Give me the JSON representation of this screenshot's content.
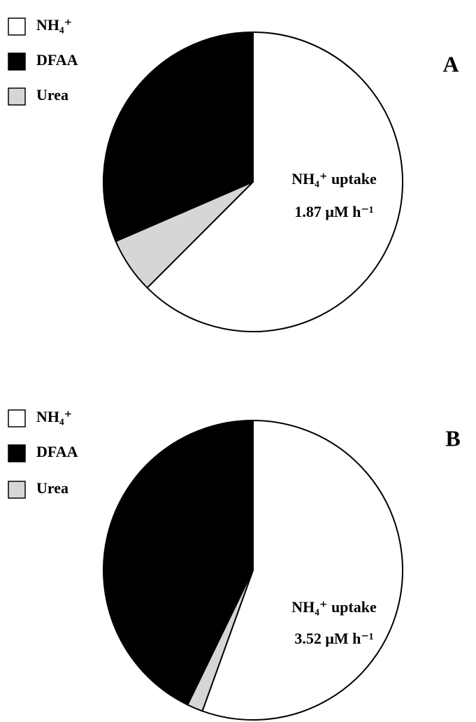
{
  "chart_data": [
    {
      "type": "pie",
      "panel": "A",
      "categories": [
        "NH₄⁺",
        "DFAA",
        "Urea"
      ],
      "values": [
        62.5,
        31.5,
        6
      ],
      "colors": [
        "#ffffff",
        "#000000",
        "#d6d6d6"
      ],
      "startangle": -135,
      "counterclock": true,
      "annotation": [
        "NH₄⁺ uptake",
        "1.87 μM h⁻¹"
      ]
    },
    {
      "type": "pie",
      "panel": "B",
      "categories": [
        "NH₄⁺",
        "DFAA",
        "Urea"
      ],
      "values": [
        55.5,
        42.8,
        1.7
      ],
      "colors": [
        "#ffffff",
        "#000000",
        "#d6d6d6"
      ],
      "startangle": -109.8,
      "counterclock": true,
      "annotation": [
        "NH₄⁺ uptake",
        "3.52 μM h⁻¹"
      ]
    }
  ]
}
